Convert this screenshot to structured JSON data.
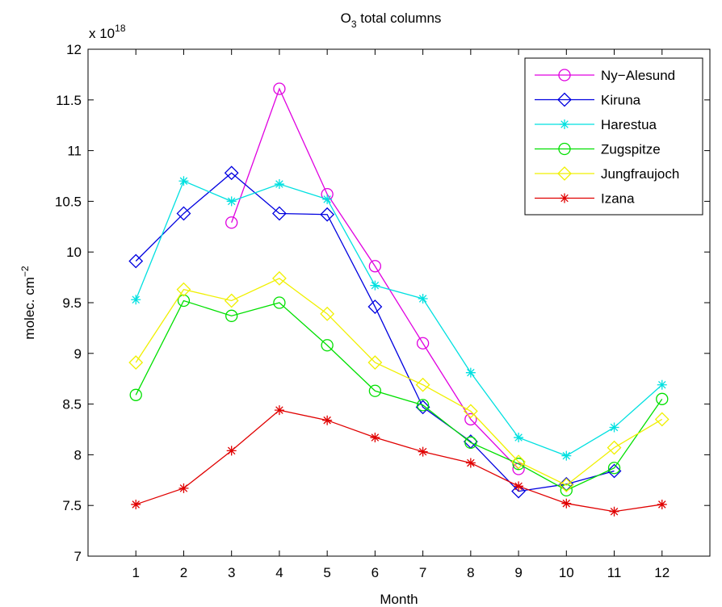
{
  "chart_data": {
    "type": "line",
    "title_main": "O",
    "title_sub": "3",
    "title_rest": " total columns",
    "xlabel": "Month",
    "ylabel_main": "molec. cm",
    "ylabel_sup": "−2",
    "exponent_base": "x 10",
    "exponent_power": "18",
    "xlim": [
      0,
      13
    ],
    "ylim": [
      7,
      12
    ],
    "x_ticks": [
      1,
      2,
      3,
      4,
      5,
      6,
      7,
      8,
      9,
      10,
      11,
      12
    ],
    "y_ticks": [
      7,
      7.5,
      8,
      8.5,
      9,
      9.5,
      10,
      10.5,
      11,
      11.5,
      12
    ],
    "y_tick_labels": [
      "7",
      "7.5",
      "8",
      "8.5",
      "9",
      "9.5",
      "10",
      "10.5",
      "11",
      "11.5",
      "12"
    ],
    "grid": false,
    "legend_position": "top-right",
    "series": [
      {
        "name": "Ny−Alesund",
        "color": "#e000e0",
        "marker": "circle",
        "x": [
          3,
          4,
          5,
          6,
          7,
          8,
          9
        ],
        "y": [
          10.29,
          11.61,
          10.57,
          9.86,
          9.1,
          8.35,
          7.86
        ]
      },
      {
        "name": "Kiruna",
        "color": "#0000e0",
        "marker": "diamond",
        "x": [
          1,
          2,
          3,
          4,
          5,
          6,
          7,
          8,
          9,
          10,
          11
        ],
        "y": [
          9.91,
          10.38,
          10.78,
          10.38,
          10.37,
          9.46,
          8.47,
          8.13,
          7.64,
          7.71,
          7.84
        ]
      },
      {
        "name": "Harestua",
        "color": "#00e0e0",
        "marker": "asterisk",
        "x": [
          1,
          2,
          3,
          4,
          5,
          6,
          7,
          8,
          9,
          10,
          11,
          12
        ],
        "y": [
          9.53,
          10.7,
          10.5,
          10.67,
          10.52,
          9.67,
          9.54,
          8.81,
          8.17,
          7.99,
          8.27,
          8.69
        ]
      },
      {
        "name": "Zugspitze",
        "color": "#00e000",
        "marker": "circle",
        "x": [
          1,
          2,
          3,
          4,
          5,
          6,
          7,
          8,
          9,
          10,
          11,
          12
        ],
        "y": [
          8.59,
          9.52,
          9.37,
          9.5,
          9.08,
          8.63,
          8.49,
          8.12,
          7.91,
          7.65,
          7.87,
          8.55
        ]
      },
      {
        "name": "Jungfraujoch",
        "color": "#f0f000",
        "marker": "diamond",
        "x": [
          1,
          2,
          3,
          4,
          5,
          6,
          7,
          8,
          9,
          10,
          11,
          12
        ],
        "y": [
          8.91,
          9.63,
          9.52,
          9.74,
          9.39,
          8.91,
          8.69,
          8.43,
          7.93,
          7.7,
          8.07,
          8.35
        ]
      },
      {
        "name": "Izana",
        "color": "#e00000",
        "marker": "asterisk",
        "x": [
          1,
          2,
          3,
          4,
          5,
          6,
          7,
          8,
          9,
          10,
          11,
          12
        ],
        "y": [
          7.51,
          7.67,
          8.04,
          8.44,
          8.34,
          8.17,
          8.03,
          7.92,
          7.69,
          7.52,
          7.44,
          7.51
        ]
      }
    ]
  }
}
